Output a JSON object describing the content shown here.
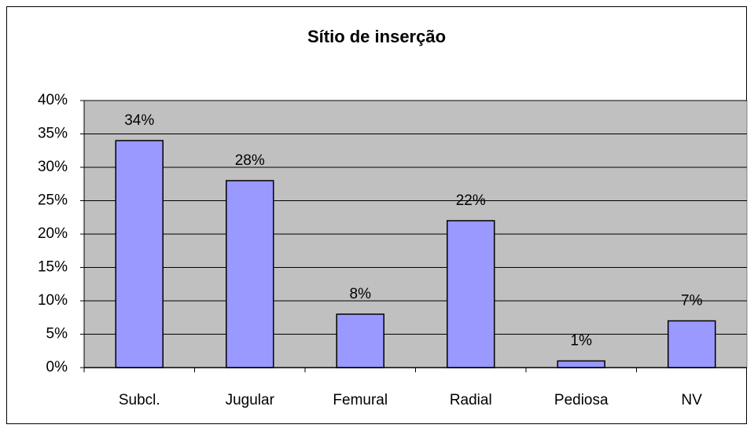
{
  "chart_data": {
    "type": "bar",
    "title": "Sítio de inserção",
    "categories": [
      "Subcl.",
      "Jugular",
      "Femural",
      "Radial",
      "Pediosa",
      "NV"
    ],
    "values": [
      34,
      28,
      8,
      22,
      1,
      7
    ],
    "value_labels": [
      "34%",
      "28%",
      "8%",
      "22%",
      "1%",
      "7%"
    ],
    "color": "#9999ff",
    "ylim": [
      0,
      40
    ],
    "yticks": [
      {
        "value": 0,
        "label": "0%"
      },
      {
        "value": 5,
        "label": "5%"
      },
      {
        "value": 10,
        "label": "10%"
      },
      {
        "value": 15,
        "label": "15%"
      },
      {
        "value": 20,
        "label": "20%"
      },
      {
        "value": 25,
        "label": "25%"
      },
      {
        "value": 30,
        "label": "30%"
      },
      {
        "value": 35,
        "label": "35%"
      },
      {
        "value": 40,
        "label": "40%"
      }
    ],
    "grid": true
  }
}
